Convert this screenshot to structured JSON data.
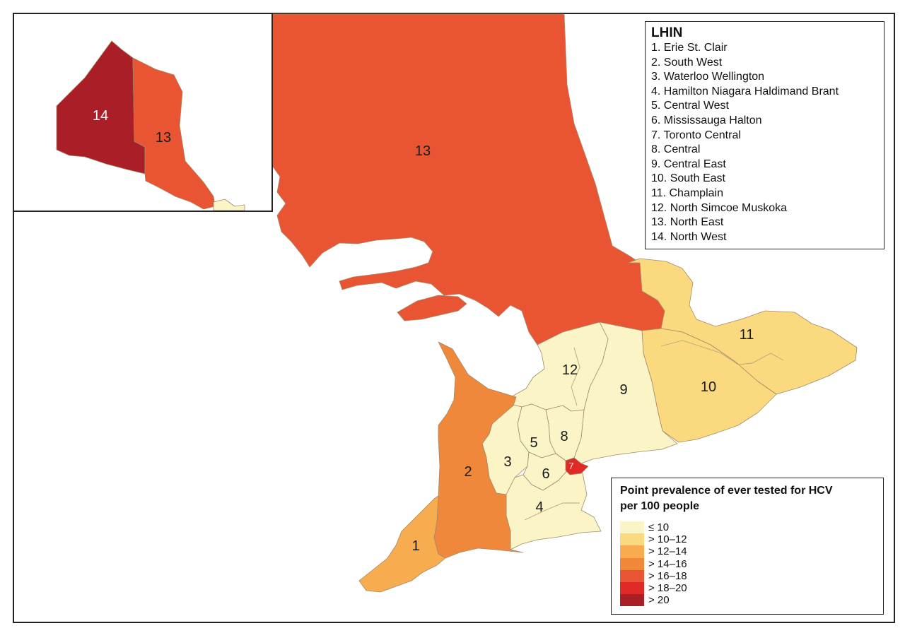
{
  "lhin_legend": {
    "title": "LHIN",
    "items": [
      "1. Erie St. Clair",
      "2. South West",
      "3. Waterloo Wellington",
      "4. Hamilton Niagara Haldimand Brant",
      "5. Central West",
      "6. Mississauga Halton",
      "7. Toronto Central",
      "8. Central",
      "9. Central East",
      "10. South East",
      "11. Champlain",
      "12. North Simcoe Muskoka",
      "13. North East",
      "14. North West"
    ]
  },
  "prevalence_legend": {
    "title_line1": "Point prevalence of ever tested for HCV",
    "title_line2": "per 100 people",
    "classes": [
      {
        "label": "≤ 10",
        "color": "#fbf4c7"
      },
      {
        "label": "> 10–12",
        "color": "#fbd97e"
      },
      {
        "label": "> 12–14",
        "color": "#f7ac4f"
      },
      {
        "label": "> 14–16",
        "color": "#f0883c"
      },
      {
        "label": "> 16–18",
        "color": "#e95533"
      },
      {
        "label": "> 18–20",
        "color": "#df2a26"
      },
      {
        "label": "> 20",
        "color": "#aa1e27"
      }
    ]
  },
  "regions": [
    {
      "id": "1",
      "label": "1",
      "name": "Erie St. Clair",
      "class": "> 12–14",
      "color": "#f7ac4f"
    },
    {
      "id": "2",
      "label": "2",
      "name": "South West",
      "class": "> 14–16",
      "color": "#f0883c"
    },
    {
      "id": "3",
      "label": "3",
      "name": "Waterloo Wellington",
      "class": "≤ 10",
      "color": "#fbf4c7"
    },
    {
      "id": "4",
      "label": "4",
      "name": "Hamilton Niagara Haldimand Brant",
      "class": "≤ 10",
      "color": "#fbf4c7"
    },
    {
      "id": "5",
      "label": "5",
      "name": "Central West",
      "class": "≤ 10",
      "color": "#fbf4c7"
    },
    {
      "id": "6",
      "label": "6",
      "name": "Mississauga Halton",
      "class": "≤ 10",
      "color": "#fbf4c7"
    },
    {
      "id": "7",
      "label": "7",
      "name": "Toronto Central",
      "class": "> 18–20",
      "color": "#df2a26"
    },
    {
      "id": "8",
      "label": "8",
      "name": "Central",
      "class": "≤ 10",
      "color": "#fbf4c7"
    },
    {
      "id": "9",
      "label": "9",
      "name": "Central East",
      "class": "≤ 10",
      "color": "#fbf4c7"
    },
    {
      "id": "10",
      "label": "10",
      "name": "South East",
      "class": "> 10–12",
      "color": "#fbd97e"
    },
    {
      "id": "11",
      "label": "11",
      "name": "Champlain",
      "class": "> 10–12",
      "color": "#fbd97e"
    },
    {
      "id": "12",
      "label": "12",
      "name": "North Simcoe Muskoka",
      "class": "≤ 10",
      "color": "#fbf4c7"
    },
    {
      "id": "13",
      "label": "13",
      "name": "North East",
      "class": "> 16–18",
      "color": "#e95533"
    },
    {
      "id": "14",
      "label": "14",
      "name": "North West",
      "class": "> 20",
      "color": "#aa1e27"
    }
  ],
  "inset_labels": {
    "north_west": "14",
    "north_east": "13"
  }
}
